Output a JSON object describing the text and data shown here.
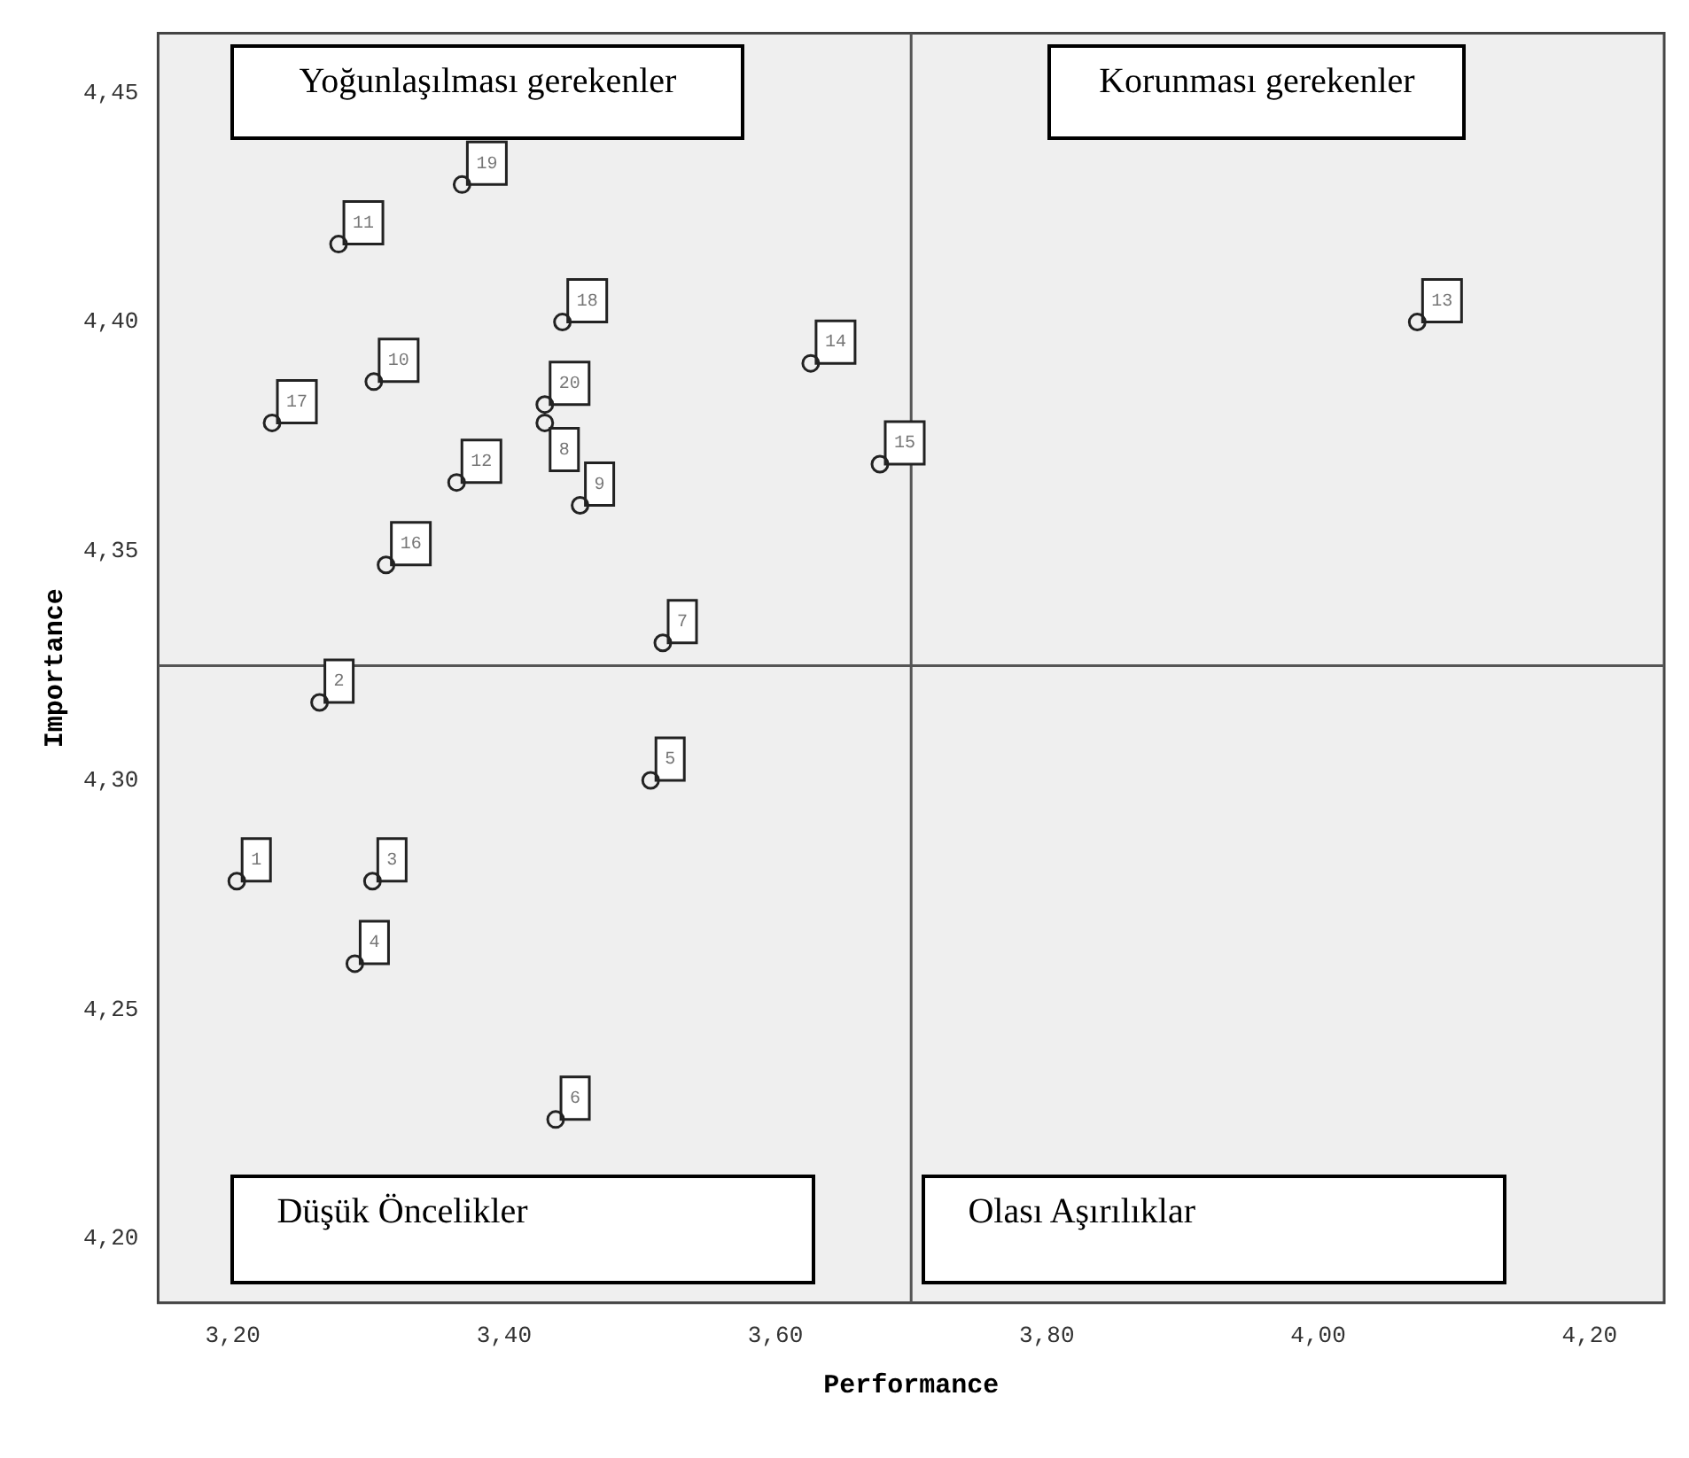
{
  "chart_data": {
    "type": "scatter",
    "xlabel": "Performance",
    "ylabel": "Importance",
    "marker": "circle",
    "grid": false,
    "legend": false,
    "series": [
      {
        "name": "1",
        "color": "#222222",
        "x": [
          3.203
        ],
        "values": [
          4.278
        ]
      },
      {
        "name": "2",
        "color": "#222222",
        "x": [
          3.264
        ],
        "values": [
          4.317
        ]
      },
      {
        "name": "3",
        "color": "#222222",
        "x": [
          3.303
        ],
        "values": [
          4.278
        ]
      },
      {
        "name": "4",
        "color": "#222222",
        "x": [
          3.29
        ],
        "values": [
          4.26
        ]
      },
      {
        "name": "5",
        "color": "#222222",
        "x": [
          3.508
        ],
        "values": [
          4.3
        ]
      },
      {
        "name": "6",
        "color": "#222222",
        "x": [
          3.438
        ],
        "values": [
          4.226
        ]
      },
      {
        "name": "7",
        "color": "#222222",
        "x": [
          3.517
        ],
        "values": [
          4.33
        ]
      },
      {
        "name": "8",
        "color": "#222222",
        "x": [
          3.43
        ],
        "values": [
          4.378
        ]
      },
      {
        "name": "9",
        "color": "#222222",
        "x": [
          3.456
        ],
        "values": [
          4.36
        ]
      },
      {
        "name": "10",
        "color": "#222222",
        "x": [
          3.304
        ],
        "values": [
          4.387
        ]
      },
      {
        "name": "11",
        "color": "#222222",
        "x": [
          3.278
        ],
        "values": [
          4.417
        ]
      },
      {
        "name": "12",
        "color": "#222222",
        "x": [
          3.365
        ],
        "values": [
          4.365
        ]
      },
      {
        "name": "13",
        "color": "#222222",
        "x": [
          4.073
        ],
        "values": [
          4.4
        ]
      },
      {
        "name": "14",
        "color": "#222222",
        "x": [
          3.626
        ],
        "values": [
          4.391
        ]
      },
      {
        "name": "15",
        "color": "#222222",
        "x": [
          3.677
        ],
        "values": [
          4.369
        ]
      },
      {
        "name": "16",
        "color": "#222222",
        "x": [
          3.313
        ],
        "values": [
          4.347
        ]
      },
      {
        "name": "17",
        "color": "#222222",
        "x": [
          3.229
        ],
        "values": [
          4.378
        ]
      },
      {
        "name": "18",
        "color": "#222222",
        "x": [
          3.443
        ],
        "values": [
          4.4
        ]
      },
      {
        "name": "19",
        "color": "#222222",
        "x": [
          3.369
        ],
        "values": [
          4.43
        ]
      },
      {
        "name": "20",
        "color": "#222222",
        "x": [
          3.43
        ],
        "values": [
          4.382
        ]
      }
    ],
    "xlim": [
      3.145,
      4.255
    ],
    "xticks": [
      {
        "value": 3.2,
        "label": "3,20"
      },
      {
        "value": 3.4,
        "label": "3,40"
      },
      {
        "value": 3.6,
        "label": "3,60"
      },
      {
        "value": 3.8,
        "label": "3,80"
      },
      {
        "value": 4.0,
        "label": "4,00"
      },
      {
        "value": 4.2,
        "label": "4,20"
      }
    ],
    "ylim": [
      4.186,
      4.463
    ],
    "yticks": [
      {
        "value": 4.2,
        "label": "4,20"
      },
      {
        "value": 4.25,
        "label": "4,25"
      },
      {
        "value": 4.3,
        "label": "4,30"
      },
      {
        "value": 4.35,
        "label": "4,35"
      },
      {
        "value": 4.4,
        "label": "4,40"
      },
      {
        "value": 4.45,
        "label": "4,45"
      }
    ],
    "ref_lines": [
      {
        "axis": "x",
        "value": 3.7,
        "color": "#555555"
      },
      {
        "axis": "y",
        "value": 4.325,
        "color": "#555555"
      }
    ],
    "annotations": [
      "Yoğunlaşılması gerekenler",
      "Korunması gerekenler",
      "Düşük Öncelikler",
      "Olası Aşırılıklar"
    ]
  }
}
